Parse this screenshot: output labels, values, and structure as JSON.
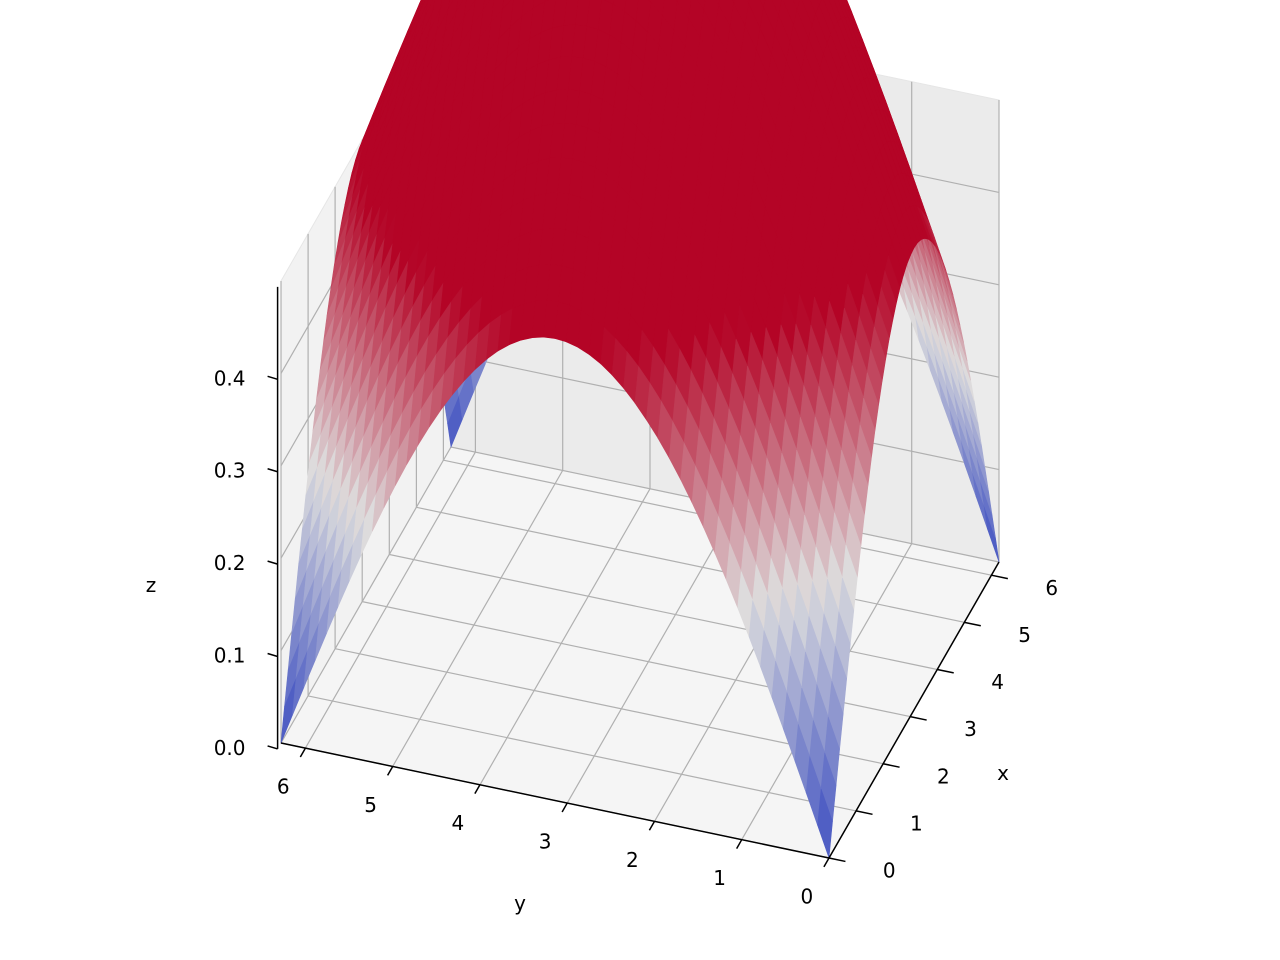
{
  "chart_data": {
    "type": "surface3d",
    "title": "",
    "colormap": "coolwarm",
    "colors": {
      "low": "#3b4cc0",
      "mid": "#dddddd",
      "high": "#b40426",
      "pane": "#f2f2f2",
      "grid": "#b0b0b0"
    },
    "axes": {
      "x": {
        "label": "x",
        "ticks": [
          "0",
          "1",
          "2",
          "3",
          "4",
          "5",
          "6"
        ],
        "range": [
          0,
          6.28
        ]
      },
      "y": {
        "label": "y",
        "ticks": [
          "0",
          "1",
          "2",
          "3",
          "4",
          "5",
          "6"
        ],
        "range": [
          0,
          6.28
        ]
      },
      "z": {
        "label": "z",
        "ticks": [
          "0.0",
          "0.1",
          "0.2",
          "0.3",
          "0.4"
        ],
        "range": [
          0,
          0.5
        ]
      }
    },
    "grid": true,
    "surface": {
      "description_values": "z along the four edges follows a sine arch; corners near 0, edge midpoints near 0.5, centre saddle about 0.39",
      "corner_z": 0.0,
      "edge_mid_z": 0.5,
      "center_z": 0.39
    }
  }
}
